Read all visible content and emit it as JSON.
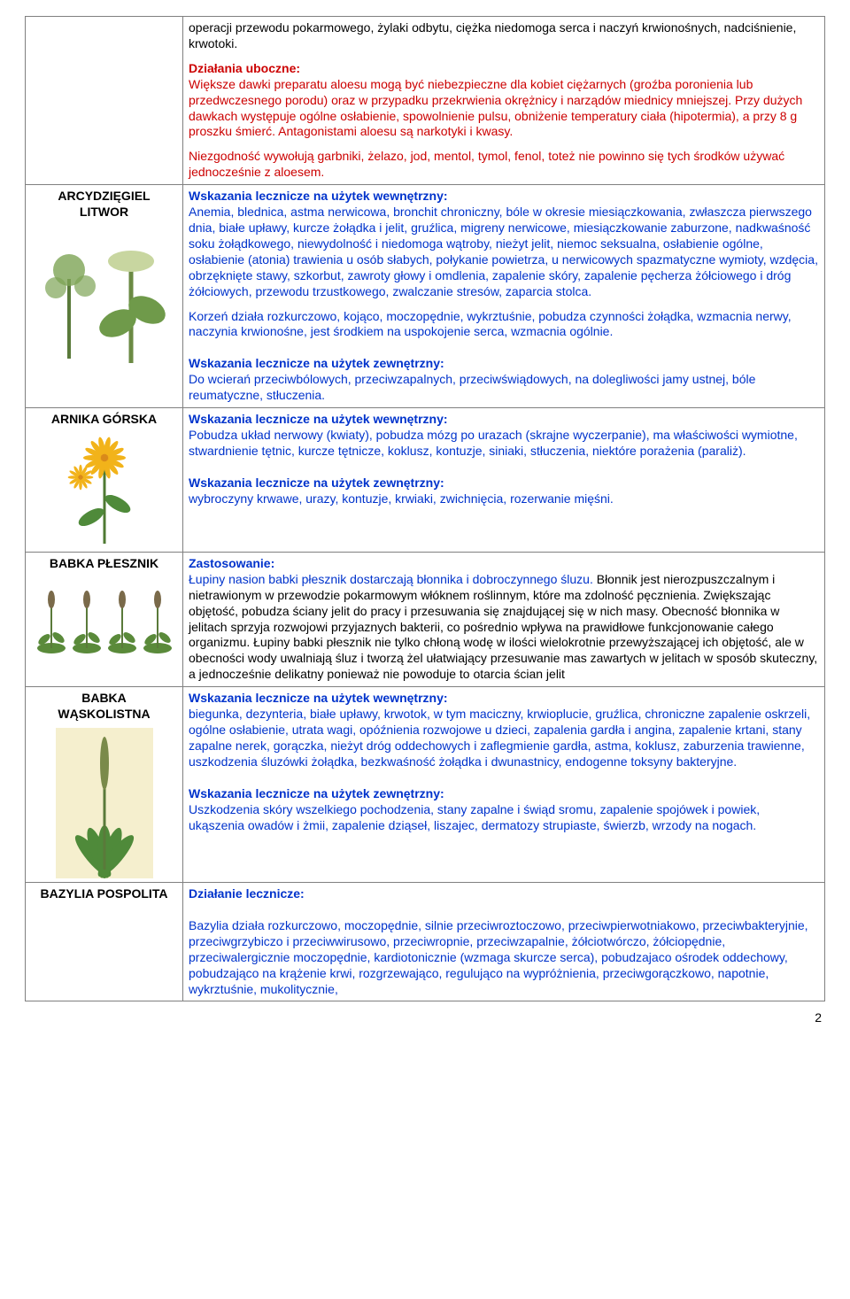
{
  "page_number": "2",
  "rows": [
    {
      "name_lines": [],
      "blocks": [
        {
          "type": "plain",
          "parts": [
            {
              "text": "operacji przewodu pokarmowego, żylaki odbytu, ciężka niedomoga serca i naczyń krwionośnych, nadciśnienie, krwotoki."
            }
          ]
        },
        {
          "type": "plain",
          "parts": [
            {
              "text": "Działania uboczne:",
              "cls": "heading red"
            }
          ]
        },
        {
          "type": "plain",
          "parts": [
            {
              "text": "Większe dawki preparatu aloesu mogą być niebezpieczne dla kobiet ciężarnych (groźba poronienia lub przedwczesnego porodu) oraz w przypadku przekrwienia okrężnicy i narządów miednicy mniejszej. Przy dużych dawkach występuje ogólne osłabienie, spowolnienie pulsu, obniżenie temperatury ciała (hipotermia), a przy 8 g proszku śmierć. Antagonistami aloesu są narkotyki i kwasy.",
              "cls": "red"
            }
          ]
        },
        {
          "type": "plain",
          "parts": [
            {
              "text": "Niezgodność wywołują garbniki, żelazo, jod, mentol, tymol, fenol, toteż nie powinno się tych środków używać jednocześnie z aloesem.",
              "cls": "red"
            }
          ]
        }
      ]
    },
    {
      "name_lines": [
        "ARCYDZIĘGIEL",
        "LITWOR"
      ],
      "illus": "angelica",
      "blocks": [
        {
          "type": "plain",
          "parts": [
            {
              "text": "Wskazania lecznicze na użytek wewnętrzny:",
              "cls": "heading blue"
            }
          ]
        },
        {
          "type": "plain",
          "parts": [
            {
              "text": "Anemia, blednica, astma nerwicowa, bronchit chroniczny, bóle w okresie miesiączkowania, zwłaszcza pierwszego dnia, białe upławy, kurcze żołądka i jelit, gruźlica, migreny nerwicowe, miesiączkowanie zaburzone, nadkwaśność soku żołądkowego, niewydolność i niedomoga wątroby, nieżyt jelit, niemoc seksualna, osłabienie ogólne, osłabienie (atonia) trawienia u osób słabych, połykanie powietrza, u nerwicowych spazmatyczne wymioty, wzdęcia, obrzęknięte stawy, szkorbut, zawroty głowy i omdlenia, zapalenie skóry, zapalenie pęcherza żółciowego i dróg żółciowych, przewodu trzustkowego, zwalczanie stresów, zaparcia stolca.",
              "cls": "blue"
            }
          ]
        },
        {
          "type": "plain",
          "parts": [
            {
              "text": "Korzeń działa rozkurczowo, kojąco, moczopędnie, wykrztuśnie, pobudza czynności żołądka, wzmacnia nerwy, naczynia krwionośne, jest środkiem na uspokojenie serca, wzmacnia ogólnie.",
              "cls": "blue"
            }
          ]
        },
        {
          "type": "spacer"
        },
        {
          "type": "plain",
          "parts": [
            {
              "text": "Wskazania lecznicze na użytek zewnętrzny:",
              "cls": "heading blue"
            }
          ]
        },
        {
          "type": "plain",
          "parts": [
            {
              "text": "Do wcierań przeciwbólowych, przeciwzapalnych, przeciwświądowych, na dolegliwości jamy ustnej, bóle reumatyczne, stłuczenia.",
              "cls": "blue"
            }
          ]
        }
      ]
    },
    {
      "name_lines": [
        "ARNIKA GÓRSKA"
      ],
      "illus": "arnica",
      "blocks": [
        {
          "type": "plain",
          "parts": [
            {
              "text": "Wskazania lecznicze na użytek wewnętrzny:",
              "cls": "heading blue"
            }
          ]
        },
        {
          "type": "plain",
          "parts": [
            {
              "text": "Pobudza układ nerwowy (kwiaty), pobudza mózg po urazach (skrajne wyczerpanie), ma właściwości wymiotne, stwardnienie tętnic, kurcze tętnicze, koklusz, kontuzje, siniaki, stłuczenia, niektóre porażenia (paraliż).",
              "cls": "blue"
            }
          ]
        },
        {
          "type": "spacer"
        },
        {
          "type": "plain",
          "parts": [
            {
              "text": "Wskazania lecznicze na użytek zewnętrzny:",
              "cls": "heading blue"
            }
          ]
        },
        {
          "type": "plain",
          "parts": [
            {
              "text": "wybroczyny krwawe, urazy, kontuzje, krwiaki, zwichnięcia, rozerwanie mięśni.",
              "cls": "blue"
            }
          ]
        }
      ]
    },
    {
      "name_lines": [
        "BABKA PŁESZNIK"
      ],
      "illus": "plesznik",
      "blocks": [
        {
          "type": "plain",
          "parts": [
            {
              "text": "Zastosowanie:",
              "cls": "heading blue"
            }
          ]
        },
        {
          "type": "plain",
          "parts": [
            {
              "text": "Łupiny nasion babki płesznik dostarczają błonnika i dobroczynnego śluzu. ",
              "cls": "blue"
            },
            {
              "text": "Błonnik jest nierozpuszczalnym i nietrawionym w przewodzie pokarmowym włóknem roślinnym, które ma zdolność pęcznienia. Zwiększając objętość, pobudza ściany jelit do pracy i przesuwania się znajdującej się w nich masy. Obecność błonnika w jelitach sprzyja rozwojowi przyjaznych bakterii, co pośrednio wpływa na prawidłowe funkcjonowanie całego organizmu. Łupiny babki płesznik nie tylko chłoną wodę w ilości wielokrotnie przewyższającej ich objętość, ale w obecności wody uwalniają śluz i tworzą żel ułatwiający przesuwanie mas zawartych w jelitach w sposób skuteczny, a jednocześnie delikatny ponieważ nie powoduje to otarcia ścian jelit"
            }
          ]
        }
      ]
    },
    {
      "name_lines": [
        "BABKA",
        "WĄSKOLISTNA"
      ],
      "illus": "plantain",
      "blocks": [
        {
          "type": "plain",
          "parts": [
            {
              "text": "Wskazania lecznicze na użytek wewnętrzny:",
              "cls": "heading blue"
            }
          ]
        },
        {
          "type": "plain",
          "parts": [
            {
              "text": "biegunka, dezynteria, białe upławy, krwotok, w tym maciczny, krwioplucie, gruźlica, chroniczne zapalenie oskrzeli, ogólne osłabienie, utrata wagi, opóźnienia rozwojowe u dzieci, zapalenia gardła i angina, zapalenie krtani, stany zapalne nerek, gorączka, nieżyt dróg oddechowych i zaflegmienie gardła, astma, koklusz, zaburzenia trawienne, uszkodzenia śluzówki żołądka, bezkwaśność żołądka i dwunastnicy, endogenne toksyny bakteryjne.",
              "cls": "blue"
            }
          ]
        },
        {
          "type": "spacer"
        },
        {
          "type": "plain",
          "parts": [
            {
              "text": "Wskazania lecznicze na użytek zewnętrzny:",
              "cls": "heading blue"
            }
          ]
        },
        {
          "type": "plain",
          "parts": [
            {
              "text": "Uszkodzenia skóry wszelkiego pochodzenia, stany zapalne i świąd sromu, zapalenie spojówek i powiek, ukąszenia owadów i żmii, zapalenie dziąseł, liszajec, dermatozy strupiaste, świerzb, wrzody na nogach.",
              "cls": "blue"
            }
          ]
        }
      ]
    },
    {
      "name_lines": [
        "BAZYLIA POSPOLITA"
      ],
      "illus": "",
      "blocks": [
        {
          "type": "plain",
          "parts": [
            {
              "text": "Działanie lecznicze:",
              "cls": "heading blue"
            }
          ]
        },
        {
          "type": "spacer"
        },
        {
          "type": "plain",
          "parts": [
            {
              "text": "Bazylia działa rozkurczowo, moczopędnie, silnie przeciwroztoczowo, przeciwpierwotniakowo, przeciwbakteryjnie, przeciwgrzybiczo i przeciwwirusowo, przeciwropnie, przeciwzapalnie, żółciotwórczo, żółciopędnie, przeciwalergicznie moczopędnie, kardiotonicznie (wzmaga skurcze serca), pobudzajaco ośrodek oddechowy, pobudzająco na krążenie krwi, rozgrzewająco, regulująco na wypróżnienia, przeciwgorączkowo, napotnie, wykrztuśnie, mukolitycznie,",
              "cls": "blue"
            }
          ]
        }
      ]
    }
  ]
}
